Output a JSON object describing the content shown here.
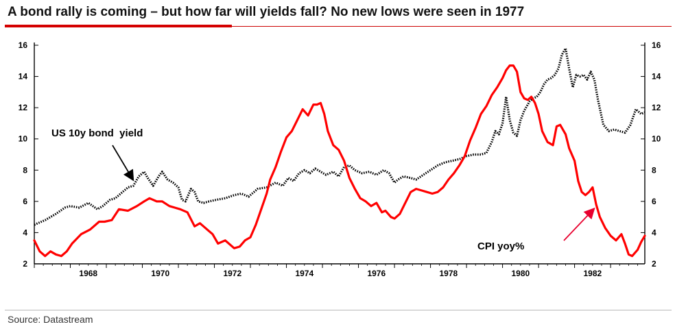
{
  "title": "A bond rally is coming – but how far will yields fall? No new lows were seen in 1977",
  "source": "Source: Datastream",
  "colors": {
    "accent": "#d40000",
    "cpi": "#ff0000",
    "yield": "#000000"
  },
  "chart_data": {
    "type": "line",
    "title": "A bond rally is coming – but how far will yields fall? No new lows were seen in 1977",
    "xlabel": "",
    "ylabel": "",
    "xlim": [
      1967.0,
      1983.95
    ],
    "ylim": [
      2,
      16
    ],
    "x_ticks": [
      1968,
      1970,
      1972,
      1974,
      1976,
      1978,
      1980,
      1982
    ],
    "x_tick_labels": [
      "1968",
      "1970",
      "1972",
      "1974",
      "1976",
      "1978",
      "1980",
      "1982"
    ],
    "y_ticks": [
      2,
      4,
      6,
      8,
      10,
      12,
      14,
      16
    ],
    "y_tick_labels": [
      "2",
      "4",
      "6",
      "8",
      "10",
      "12",
      "14",
      "16"
    ],
    "y_axis_sides": [
      "left",
      "right"
    ],
    "grid": false,
    "annotations": [
      {
        "text": "US 10y bond  yield",
        "series": "US 10y bond yield",
        "arrow_to": [
          1969.75,
          7.35
        ]
      },
      {
        "text": "CPI yoy%",
        "series": "CPI yoy%",
        "arrow_to": [
          1982.55,
          5.55
        ]
      }
    ],
    "series": [
      {
        "name": "US 10y bond yield",
        "style": "dotted",
        "color": "#000000",
        "x": [
          1967.0,
          1967.3,
          1967.6,
          1967.85,
          1968.0,
          1968.25,
          1968.5,
          1968.75,
          1968.9,
          1969.1,
          1969.25,
          1969.4,
          1969.6,
          1969.75,
          1969.9,
          1970.05,
          1970.15,
          1970.3,
          1970.45,
          1970.55,
          1970.7,
          1970.85,
          1971.0,
          1971.1,
          1971.2,
          1971.35,
          1971.45,
          1971.55,
          1971.7,
          1971.85,
          1972.05,
          1972.3,
          1972.55,
          1972.75,
          1972.95,
          1973.2,
          1973.45,
          1973.7,
          1973.9,
          1974.05,
          1974.2,
          1974.35,
          1974.5,
          1974.65,
          1974.8,
          1974.95,
          1975.1,
          1975.3,
          1975.45,
          1975.6,
          1975.75,
          1975.9,
          1976.1,
          1976.3,
          1976.5,
          1976.7,
          1976.85,
          1977.0,
          1977.1,
          1977.25,
          1977.45,
          1977.6,
          1977.8,
          1978.0,
          1978.2,
          1978.4,
          1978.6,
          1978.8,
          1979.0,
          1979.2,
          1979.4,
          1979.55,
          1979.7,
          1979.8,
          1979.9,
          1980.0,
          1980.1,
          1980.2,
          1980.3,
          1980.4,
          1980.5,
          1980.6,
          1980.75,
          1980.85,
          1980.95,
          1981.05,
          1981.15,
          1981.25,
          1981.35,
          1981.45,
          1981.55,
          1981.65,
          1981.75,
          1981.85,
          1981.95,
          1982.05,
          1982.15,
          1982.25,
          1982.35,
          1982.45,
          1982.55,
          1982.65,
          1982.8,
          1982.95,
          1983.1,
          1983.25,
          1983.4,
          1983.55,
          1983.7,
          1983.85,
          1983.95
        ],
        "values": [
          4.5,
          4.8,
          5.2,
          5.6,
          5.7,
          5.6,
          5.9,
          5.5,
          5.7,
          6.1,
          6.2,
          6.5,
          6.9,
          7.0,
          7.6,
          7.9,
          7.5,
          7.0,
          7.6,
          7.9,
          7.4,
          7.2,
          6.9,
          6.1,
          6.0,
          6.8,
          6.6,
          6.0,
          5.9,
          6.0,
          6.1,
          6.2,
          6.4,
          6.5,
          6.3,
          6.8,
          6.9,
          7.2,
          7.0,
          7.5,
          7.3,
          7.8,
          8.0,
          7.8,
          8.1,
          7.9,
          7.7,
          7.9,
          7.6,
          8.2,
          8.3,
          8.0,
          7.8,
          7.9,
          7.7,
          8.0,
          7.8,
          7.2,
          7.4,
          7.6,
          7.5,
          7.4,
          7.7,
          8.0,
          8.3,
          8.5,
          8.6,
          8.7,
          8.9,
          9.0,
          9.0,
          9.1,
          9.8,
          10.5,
          10.3,
          11.0,
          12.7,
          11.2,
          10.4,
          10.2,
          11.2,
          11.8,
          12.4,
          12.6,
          12.7,
          13.0,
          13.5,
          13.8,
          13.9,
          14.1,
          14.5,
          15.4,
          15.8,
          14.5,
          13.3,
          14.1,
          14.0,
          14.1,
          13.8,
          14.3,
          13.8,
          12.5,
          10.9,
          10.5,
          10.6,
          10.5,
          10.4,
          10.9,
          11.9,
          11.6,
          11.7
        ]
      },
      {
        "name": "CPI yoy%",
        "style": "solid",
        "color": "#ff0000",
        "x": [
          1967.0,
          1967.15,
          1967.3,
          1967.45,
          1967.6,
          1967.75,
          1967.9,
          1968.05,
          1968.3,
          1968.55,
          1968.8,
          1968.95,
          1969.15,
          1969.35,
          1969.6,
          1969.85,
          1970.05,
          1970.2,
          1970.4,
          1970.55,
          1970.75,
          1970.9,
          1971.05,
          1971.25,
          1971.45,
          1971.6,
          1971.8,
          1971.95,
          1972.1,
          1972.3,
          1972.45,
          1972.55,
          1972.7,
          1972.85,
          1973.0,
          1973.15,
          1973.3,
          1973.45,
          1973.55,
          1973.7,
          1973.85,
          1974.0,
          1974.15,
          1974.3,
          1974.45,
          1974.6,
          1974.75,
          1974.85,
          1974.95,
          1975.05,
          1975.15,
          1975.3,
          1975.45,
          1975.6,
          1975.75,
          1975.9,
          1976.05,
          1976.2,
          1976.35,
          1976.5,
          1976.65,
          1976.75,
          1976.9,
          1977.0,
          1977.15,
          1977.3,
          1977.45,
          1977.6,
          1977.75,
          1977.9,
          1978.05,
          1978.2,
          1978.35,
          1978.5,
          1978.65,
          1978.8,
          1978.95,
          1979.1,
          1979.25,
          1979.4,
          1979.55,
          1979.7,
          1979.85,
          1980.0,
          1980.1,
          1980.2,
          1980.3,
          1980.4,
          1980.5,
          1980.6,
          1980.7,
          1980.8,
          1980.9,
          1981.0,
          1981.1,
          1981.25,
          1981.4,
          1981.5,
          1981.6,
          1981.75,
          1981.85,
          1982.0,
          1982.1,
          1982.2,
          1982.3,
          1982.4,
          1982.5,
          1982.6,
          1982.7,
          1982.85,
          1983.0,
          1983.15,
          1983.3,
          1983.4,
          1983.5,
          1983.6,
          1983.75,
          1983.85,
          1983.95
        ],
        "values": [
          3.5,
          2.8,
          2.5,
          2.8,
          2.6,
          2.5,
          2.8,
          3.3,
          3.9,
          4.2,
          4.7,
          4.7,
          4.8,
          5.5,
          5.4,
          5.7,
          6.0,
          6.2,
          6.0,
          6.0,
          5.7,
          5.6,
          5.5,
          5.3,
          4.4,
          4.6,
          4.2,
          3.9,
          3.3,
          3.5,
          3.2,
          3.0,
          3.1,
          3.5,
          3.7,
          4.5,
          5.5,
          6.5,
          7.4,
          8.2,
          9.2,
          10.1,
          10.5,
          11.2,
          11.9,
          11.5,
          12.2,
          12.2,
          12.3,
          11.6,
          10.5,
          9.6,
          9.3,
          8.6,
          7.5,
          6.8,
          6.2,
          6.0,
          5.7,
          5.9,
          5.3,
          5.4,
          5.0,
          4.9,
          5.2,
          5.9,
          6.6,
          6.8,
          6.7,
          6.6,
          6.5,
          6.6,
          6.9,
          7.4,
          7.8,
          8.3,
          8.9,
          9.9,
          10.7,
          11.6,
          12.1,
          12.8,
          13.3,
          13.9,
          14.4,
          14.7,
          14.7,
          14.3,
          13.0,
          12.6,
          12.5,
          12.7,
          12.3,
          11.6,
          10.5,
          9.8,
          9.6,
          10.8,
          10.9,
          10.3,
          9.4,
          8.6,
          7.3,
          6.6,
          6.4,
          6.6,
          6.9,
          5.8,
          5.0,
          4.3,
          3.8,
          3.5,
          3.9,
          3.3,
          2.6,
          2.5,
          2.9,
          3.4,
          3.8
        ]
      }
    ]
  }
}
